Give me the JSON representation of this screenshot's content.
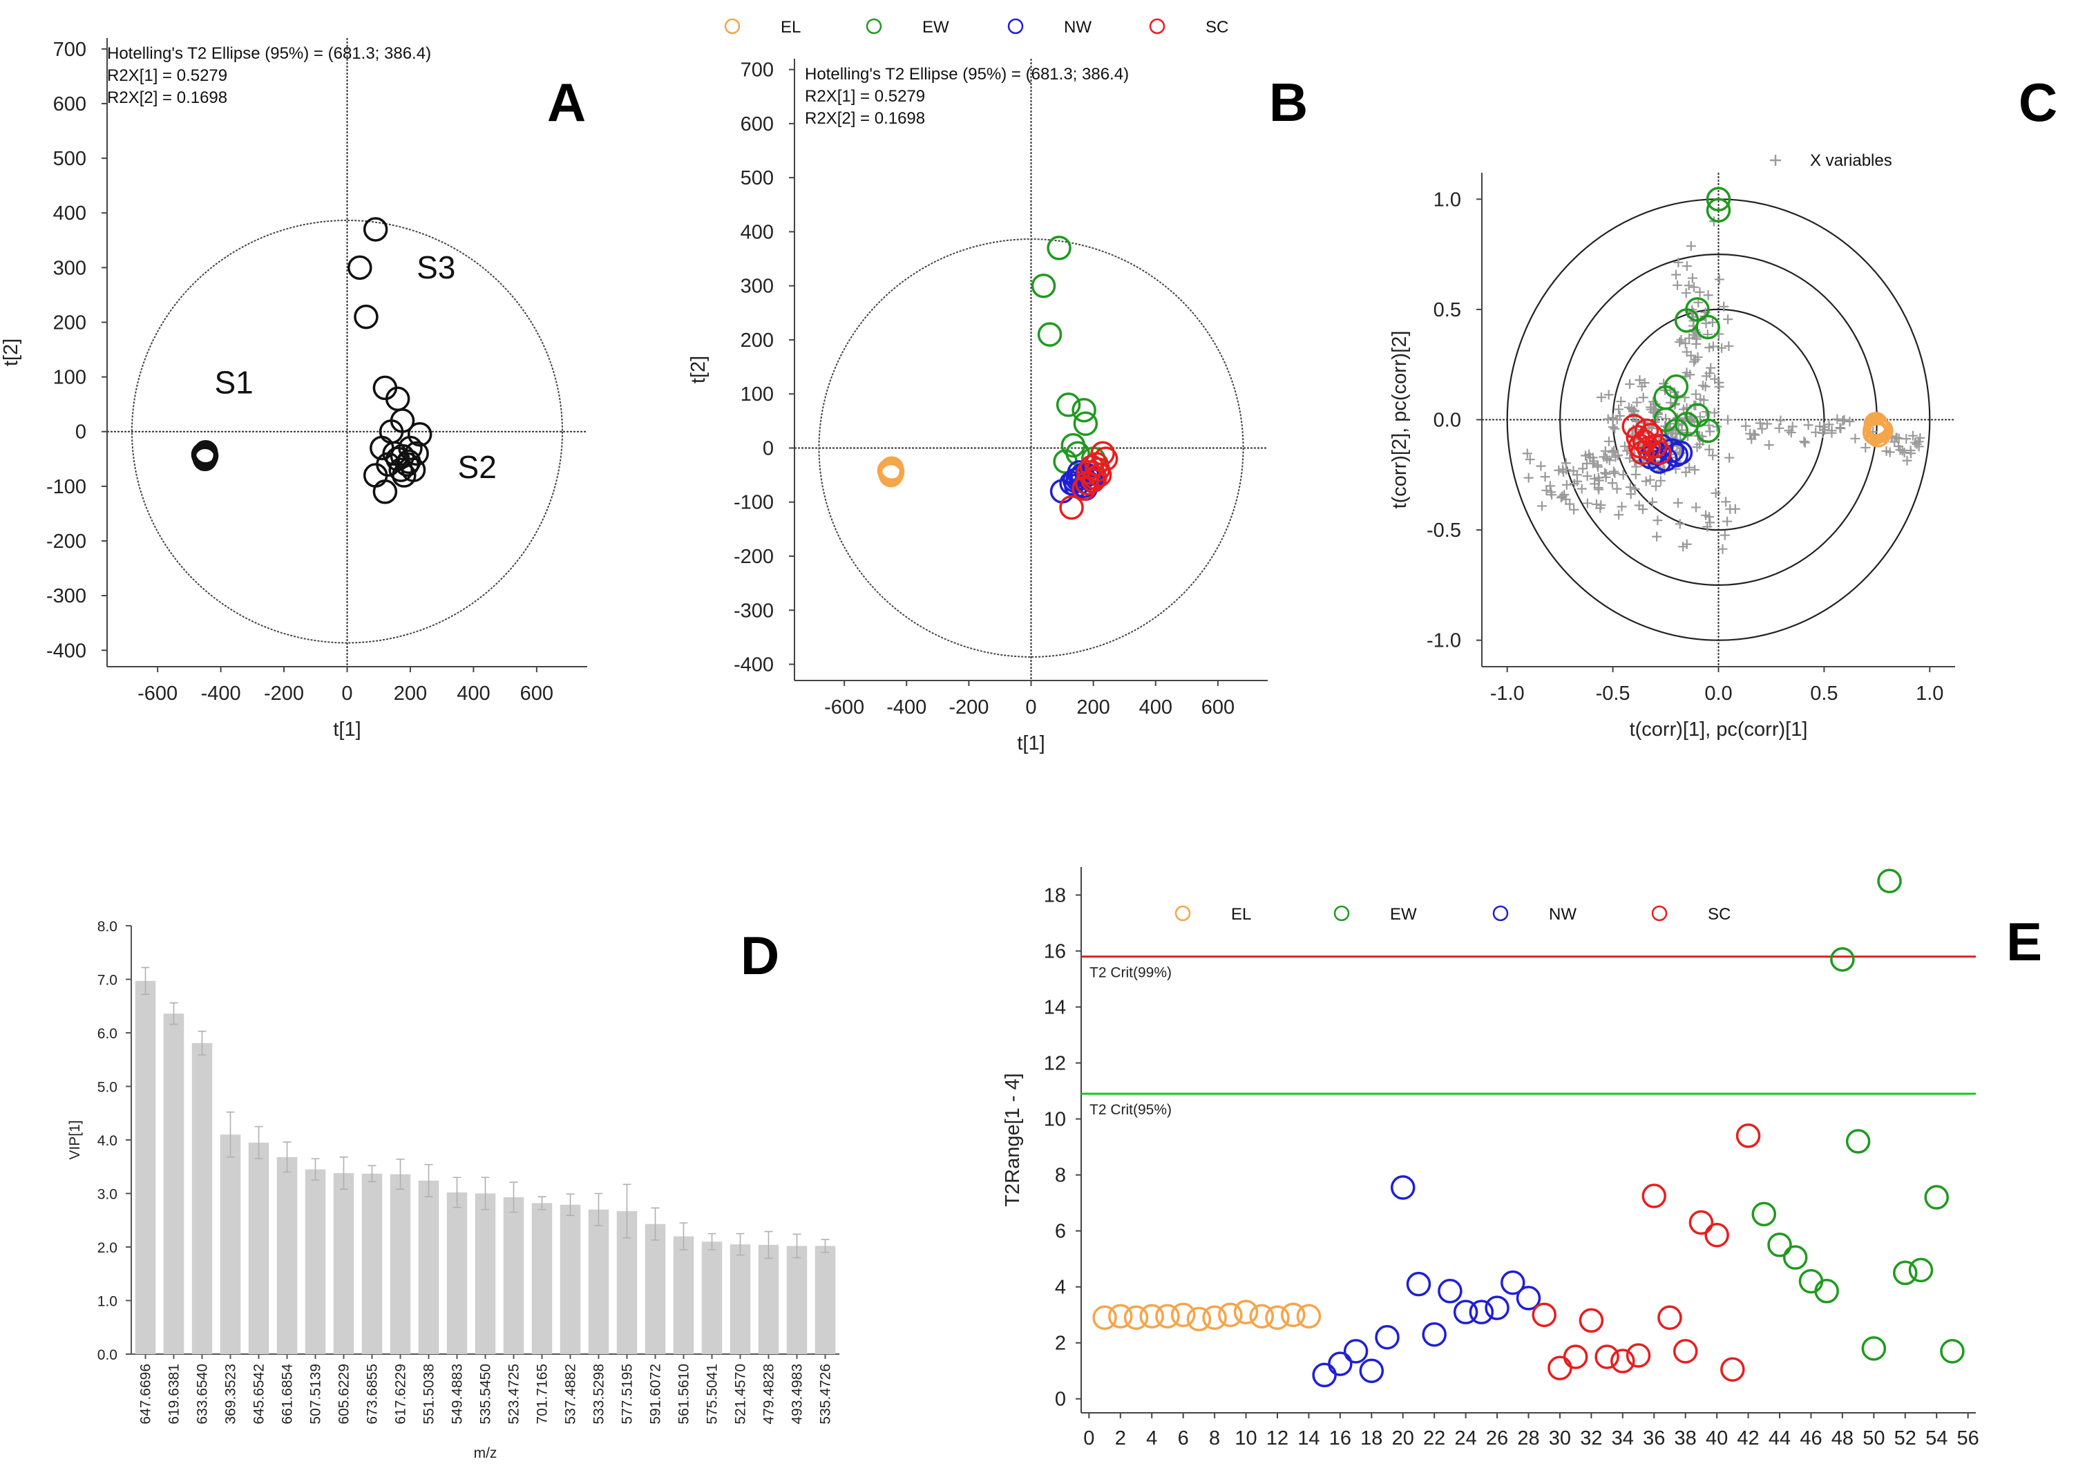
{
  "chart_data": [
    {
      "panel": "A",
      "type": "scatter",
      "xlabel": "t[1]",
      "ylabel": "t[2]",
      "xlim": [
        -760,
        760
      ],
      "ylim": [
        -430,
        720
      ],
      "xticks": [
        -600,
        -400,
        -200,
        0,
        200,
        400,
        600
      ],
      "yticks": [
        -400,
        -300,
        -200,
        -100,
        0,
        100,
        200,
        300,
        400,
        500,
        600,
        700
      ],
      "ellipse": {
        "a": 681.3,
        "b": 386.4
      },
      "info": [
        "Hotelling's T2 Ellipse (95%) = (681.3; 386.4)",
        "R2X[1] = 0.5279",
        "R2X[2] = 0.1698"
      ],
      "group_labels": [
        {
          "text": "S1",
          "x": -420,
          "y": 70
        },
        {
          "text": "S2",
          "x": 350,
          "y": -85
        },
        {
          "text": "S3",
          "x": 220,
          "y": 280
        }
      ],
      "series": [
        {
          "name": "points",
          "color": "#111111",
          "points": [
            [
              -450,
              -40
            ],
            [
              -452,
              -43
            ],
            [
              -448,
              -45
            ],
            [
              -450,
              -47
            ],
            [
              -455,
              -42
            ],
            [
              -446,
              -44
            ],
            [
              -451,
              -48
            ],
            [
              -449,
              -41
            ],
            [
              -447,
              -46
            ],
            [
              -453,
              -45
            ],
            [
              -450,
              -50
            ],
            [
              -448,
              -38
            ],
            [
              -452,
              -46
            ],
            [
              -449,
              -43
            ],
            [
              -451,
              -40
            ],
            [
              90,
              370
            ],
            [
              40,
              300
            ],
            [
              60,
              210
            ],
            [
              120,
              80
            ],
            [
              160,
              60
            ],
            [
              175,
              20
            ],
            [
              140,
              0
            ],
            [
              230,
              -5
            ],
            [
              110,
              -30
            ],
            [
              150,
              -40
            ],
            [
              200,
              -30
            ],
            [
              220,
              -40
            ],
            [
              170,
              -70
            ],
            [
              190,
              -60
            ],
            [
              130,
              -60
            ],
            [
              90,
              -80
            ],
            [
              120,
              -110
            ],
            [
              180,
              -80
            ],
            [
              210,
              -70
            ],
            [
              160,
              -50
            ],
            [
              195,
              -55
            ],
            [
              175,
              -45
            ]
          ]
        }
      ]
    },
    {
      "panel": "B",
      "type": "scatter",
      "xlabel": "t[1]",
      "ylabel": "t[2]",
      "xlim": [
        -760,
        760
      ],
      "ylim": [
        -430,
        720
      ],
      "xticks": [
        -600,
        -400,
        -200,
        0,
        200,
        400,
        600
      ],
      "yticks": [
        -400,
        -300,
        -200,
        -100,
        0,
        100,
        200,
        300,
        400,
        500,
        600,
        700
      ],
      "ellipse": {
        "a": 681.3,
        "b": 386.4
      },
      "info": [
        "Hotelling's T2 Ellipse (95%) = (681.3; 386.4)",
        "R2X[1] = 0.5279",
        "R2X[2] = 0.1698"
      ],
      "legend": [
        {
          "name": "EL",
          "color": "#f5a54a"
        },
        {
          "name": "EW",
          "color": "#1f9a1f"
        },
        {
          "name": "NW",
          "color": "#1f1fd6"
        },
        {
          "name": "SC",
          "color": "#e81e1e"
        }
      ],
      "series": [
        {
          "name": "EL",
          "color": "#f5a54a",
          "points": [
            [
              -450,
              -40
            ],
            [
              -452,
              -43
            ],
            [
              -448,
              -45
            ],
            [
              -450,
              -47
            ],
            [
              -455,
              -42
            ],
            [
              -446,
              -44
            ],
            [
              -451,
              -48
            ],
            [
              -449,
              -41
            ],
            [
              -447,
              -46
            ],
            [
              -453,
              -45
            ],
            [
              -450,
              -50
            ],
            [
              -448,
              -38
            ],
            [
              -452,
              -46
            ],
            [
              -449,
              -43
            ],
            [
              -451,
              -40
            ]
          ]
        },
        {
          "name": "EW",
          "color": "#1f9a1f",
          "points": [
            [
              90,
              370
            ],
            [
              40,
              300
            ],
            [
              60,
              210
            ],
            [
              120,
              80
            ],
            [
              170,
              70
            ],
            [
              175,
              45
            ],
            [
              135,
              5
            ],
            [
              110,
              -25
            ],
            [
              200,
              -20
            ],
            [
              150,
              -10
            ]
          ]
        },
        {
          "name": "NW",
          "color": "#1f1fd6",
          "points": [
            [
              100,
              -80
            ],
            [
              140,
              -60
            ],
            [
              170,
              -70
            ],
            [
              180,
              -50
            ],
            [
              155,
              -45
            ],
            [
              185,
              -65
            ],
            [
              160,
              -55
            ],
            [
              175,
              -75
            ],
            [
              195,
              -60
            ],
            [
              145,
              -70
            ],
            [
              165,
              -50
            ],
            [
              190,
              -55
            ],
            [
              130,
              -65
            ],
            [
              150,
              -58
            ]
          ]
        },
        {
          "name": "SC",
          "color": "#e81e1e",
          "points": [
            [
              130,
              -110
            ],
            [
              210,
              -30
            ],
            [
              230,
              -10
            ],
            [
              200,
              -60
            ],
            [
              185,
              -45
            ],
            [
              220,
              -50
            ],
            [
              170,
              -75
            ],
            [
              240,
              -20
            ],
            [
              195,
              -35
            ],
            [
              205,
              -55
            ],
            [
              180,
              -65
            ],
            [
              215,
              -40
            ]
          ]
        }
      ]
    },
    {
      "panel": "C",
      "type": "scatter",
      "xlabel": "t(corr)[1], pc(corr)[1]",
      "ylabel": "t(corr)[2], pc(corr)[2]",
      "xlim": [
        -1.12,
        1.12
      ],
      "ylim": [
        -1.12,
        1.12
      ],
      "xticks": [
        -1.0,
        -0.5,
        0.0,
        0.5,
        1.0
      ],
      "yticks": [
        -1.0,
        -0.5,
        0.0,
        0.5,
        1.0
      ],
      "tick_labels_x": [
        "-1.0",
        "-0.5",
        "0.0",
        "0.5",
        "1.0"
      ],
      "tick_labels_y": [
        "-1.0",
        "-0.5",
        "0.0",
        "0.5",
        "1.0"
      ],
      "circles": [
        0.5,
        0.75,
        1.0
      ],
      "variables_legend": "X variables",
      "series": [
        {
          "name": "EL",
          "color": "#f5a54a",
          "points": [
            [
              0.75,
              -0.03
            ],
            [
              0.76,
              -0.05
            ],
            [
              0.74,
              -0.06
            ],
            [
              0.75,
              -0.04
            ],
            [
              0.77,
              -0.05
            ],
            [
              0.745,
              -0.02
            ],
            [
              0.755,
              -0.07
            ],
            [
              0.74,
              -0.05
            ]
          ]
        },
        {
          "name": "EW",
          "color": "#1f9a1f",
          "points": [
            [
              0.0,
              1.0
            ],
            [
              0.0,
              0.95
            ],
            [
              -0.1,
              0.5
            ],
            [
              -0.15,
              0.45
            ],
            [
              -0.05,
              0.42
            ],
            [
              -0.2,
              0.15
            ],
            [
              -0.25,
              0.1
            ],
            [
              -0.1,
              0.02
            ],
            [
              -0.15,
              -0.02
            ],
            [
              -0.05,
              -0.05
            ],
            [
              -0.2,
              -0.05
            ],
            [
              -0.25,
              0.0
            ]
          ]
        },
        {
          "name": "NW",
          "color": "#1f1fd6",
          "points": [
            [
              -0.25,
              -0.18
            ],
            [
              -0.3,
              -0.15
            ],
            [
              -0.2,
              -0.16
            ],
            [
              -0.27,
              -0.12
            ],
            [
              -0.22,
              -0.14
            ],
            [
              -0.32,
              -0.17
            ],
            [
              -0.18,
              -0.15
            ],
            [
              -0.28,
              -0.19
            ]
          ]
        },
        {
          "name": "SC",
          "color": "#e81e1e",
          "points": [
            [
              -0.4,
              -0.03
            ],
            [
              -0.38,
              -0.08
            ],
            [
              -0.35,
              -0.1
            ],
            [
              -0.33,
              -0.13
            ],
            [
              -0.36,
              -0.15
            ],
            [
              -0.3,
              -0.12
            ],
            [
              -0.28,
              -0.15
            ],
            [
              -0.32,
              -0.07
            ],
            [
              -0.37,
              -0.12
            ],
            [
              -0.34,
              -0.05
            ]
          ]
        }
      ]
    },
    {
      "panel": "D",
      "type": "bar",
      "xlabel": "m/z",
      "ylabel": "VIP[1]",
      "ylim": [
        0,
        8.0
      ],
      "yticks": [
        0.0,
        1.0,
        2.0,
        3.0,
        4.0,
        5.0,
        6.0,
        7.0,
        8.0
      ],
      "tick_labels_y": [
        "0.0",
        "1.0",
        "2.0",
        "3.0",
        "4.0",
        "5.0",
        "6.0",
        "7.0",
        "8.0"
      ],
      "categories": [
        "647.6696",
        "619.6381",
        "633.6540",
        "369.3523",
        "645.6542",
        "661.6854",
        "507.5139",
        "605.6229",
        "673.6855",
        "617.6229",
        "551.5038",
        "549.4883",
        "535.5450",
        "523.4725",
        "701.7165",
        "537.4882",
        "533.5298",
        "577.5195",
        "591.6072",
        "561.5610",
        "575.5041",
        "521.4570",
        "479.4828",
        "493.4983",
        "535.4726"
      ],
      "values": [
        6.97,
        6.36,
        5.81,
        4.1,
        3.95,
        3.68,
        3.45,
        3.38,
        3.37,
        3.36,
        3.24,
        3.02,
        3.0,
        2.93,
        2.82,
        2.79,
        2.7,
        2.67,
        2.43,
        2.2,
        2.1,
        2.05,
        2.04,
        2.02,
        2.02
      ],
      "errors": [
        0.25,
        0.2,
        0.22,
        0.42,
        0.3,
        0.28,
        0.2,
        0.3,
        0.15,
        0.28,
        0.3,
        0.28,
        0.3,
        0.28,
        0.12,
        0.2,
        0.3,
        0.5,
        0.3,
        0.25,
        0.15,
        0.2,
        0.25,
        0.22,
        0.12
      ]
    },
    {
      "panel": "E",
      "type": "scatter",
      "xlabel": "",
      "ylabel": "T2Range[1 - 4]",
      "xlim": [
        -0.5,
        56.5
      ],
      "ylim": [
        -0.5,
        19
      ],
      "xticks": [
        0,
        2,
        4,
        6,
        8,
        10,
        12,
        14,
        16,
        18,
        20,
        22,
        24,
        26,
        28,
        30,
        32,
        34,
        36,
        38,
        40,
        42,
        44,
        46,
        48,
        50,
        52,
        54,
        56
      ],
      "yticks": [
        0,
        2,
        4,
        6,
        8,
        10,
        12,
        14,
        16,
        18
      ],
      "reference_lines": [
        {
          "name": "T2 Crit(99%)",
          "value": 15.8,
          "color": "#e81e1e"
        },
        {
          "name": "T2 Crit(95%)",
          "value": 10.9,
          "color": "#21c321"
        }
      ],
      "legend": [
        {
          "name": "EL",
          "color": "#f5a54a"
        },
        {
          "name": "EW",
          "color": "#1f9a1f"
        },
        {
          "name": "NW",
          "color": "#1f1fd6"
        },
        {
          "name": "SC",
          "color": "#e81e1e"
        }
      ],
      "series": [
        {
          "name": "EL",
          "color": "#f5a54a",
          "x": [
            1,
            2,
            3,
            4,
            5,
            6,
            7,
            8,
            9,
            10,
            11,
            12,
            13,
            14
          ],
          "y": [
            2.9,
            2.95,
            2.9,
            2.95,
            2.95,
            3.0,
            2.85,
            2.9,
            3.0,
            3.1,
            2.95,
            2.9,
            3.0,
            2.95
          ]
        },
        {
          "name": "NW",
          "color": "#1f1fd6",
          "x": [
            15,
            16,
            17,
            18,
            19,
            20,
            21,
            22,
            23,
            24,
            25,
            26,
            27,
            28
          ],
          "y": [
            0.85,
            1.25,
            1.7,
            1.0,
            2.2,
            7.55,
            4.1,
            2.3,
            3.85,
            3.1,
            3.1,
            3.25,
            4.15,
            3.6
          ]
        },
        {
          "name": "SC",
          "color": "#e81e1e",
          "x": [
            29,
            30,
            31,
            32,
            33,
            34,
            35,
            36,
            37,
            38,
            39,
            40,
            41,
            42
          ],
          "y": [
            3.0,
            1.1,
            1.5,
            2.8,
            1.5,
            1.35,
            1.55,
            7.25,
            2.9,
            1.7,
            6.3,
            5.85,
            1.05,
            9.4
          ]
        },
        {
          "name": "EW",
          "color": "#1f9a1f",
          "x": [
            43,
            44,
            45,
            46,
            47,
            48,
            49,
            50,
            51,
            52,
            53,
            54,
            55
          ],
          "y": [
            6.6,
            5.5,
            5.05,
            4.2,
            3.85,
            15.7,
            9.2,
            1.8,
            18.5,
            4.5,
            4.6,
            7.2,
            1.7
          ]
        }
      ]
    }
  ],
  "panels": {
    "A": {
      "letter": "A"
    },
    "B": {
      "letter": "B"
    },
    "C": {
      "letter": "C"
    },
    "D": {
      "letter": "D"
    },
    "E": {
      "letter": "E"
    }
  }
}
